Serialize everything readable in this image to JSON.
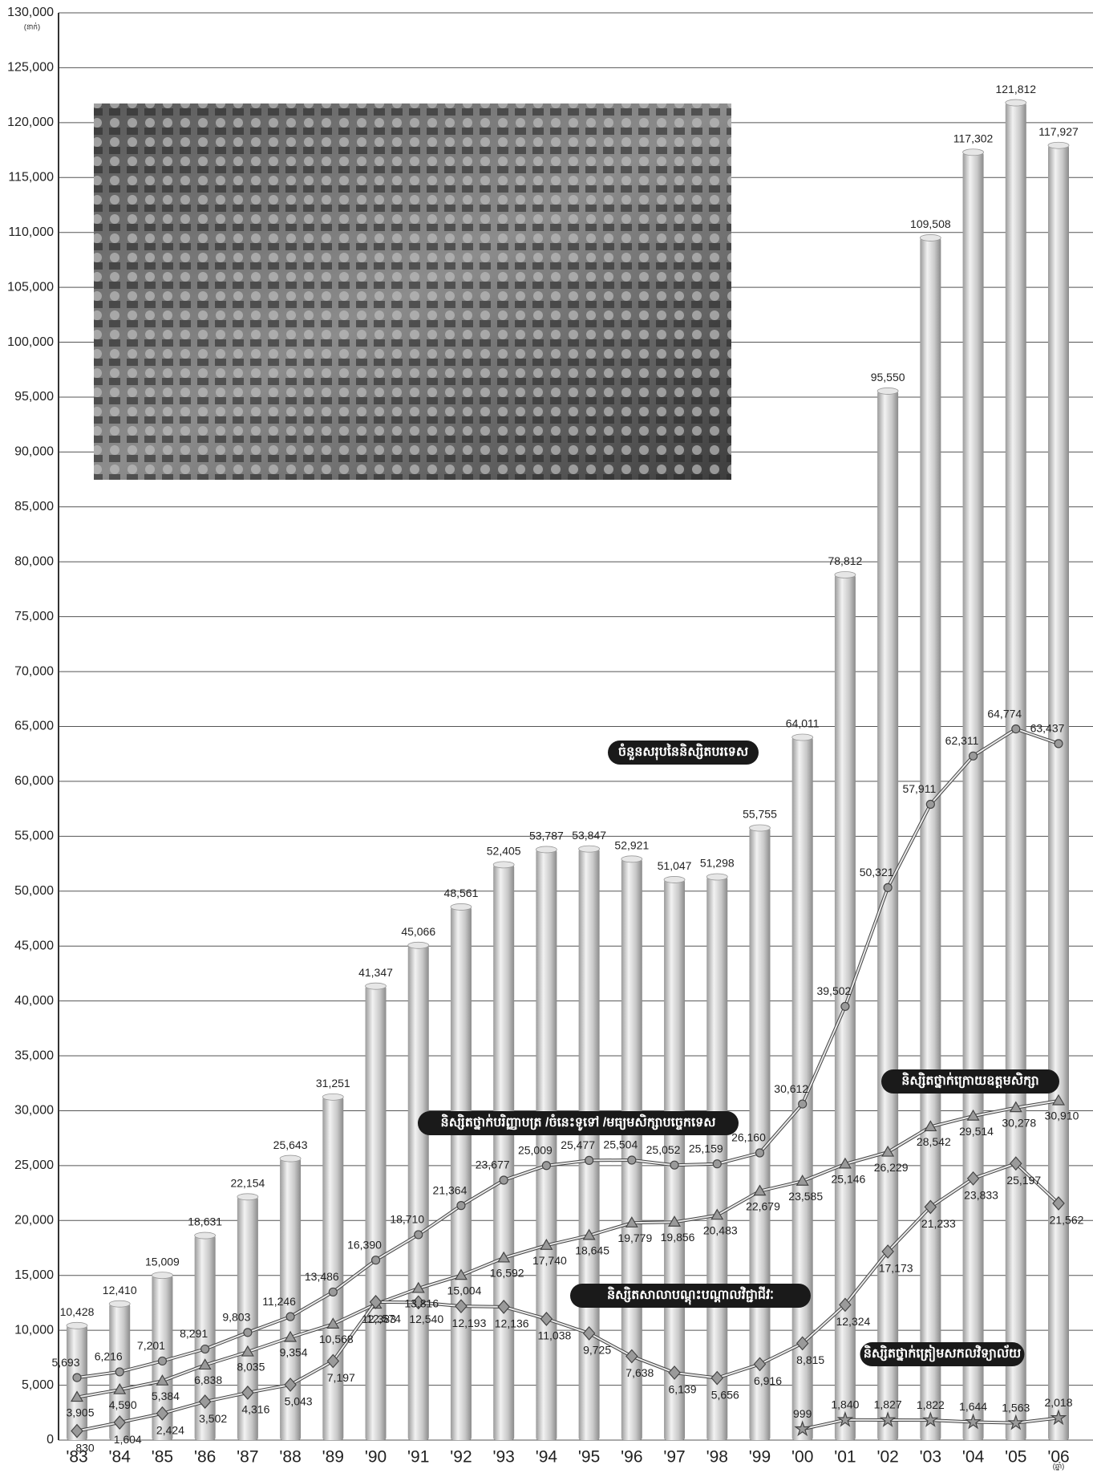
{
  "chart_data": {
    "type": "bar_line",
    "y_unit": "(នាក់)",
    "x_unit": "(ឆ្នាំ)",
    "categories": [
      "'83",
      "'84",
      "'85",
      "'86",
      "'87",
      "'88",
      "'89",
      "'90",
      "'91",
      "'92",
      "'93",
      "'94",
      "'95",
      "'96",
      "'97",
      "'98",
      "'99",
      "'00",
      "'01",
      "'02",
      "'03",
      "'04",
      "'05",
      "'06"
    ],
    "ylim": [
      0,
      130000
    ],
    "yticks": [
      0,
      {
        "value": 5000,
        "label": "5,000"
      },
      {
        "value": 10000,
        "label": "10,000"
      },
      {
        "value": 15000,
        "label": "15,000"
      },
      {
        "value": 20000,
        "label": "20,000"
      },
      {
        "value": 25000,
        "label": "25,000"
      },
      {
        "value": 30000,
        "label": "30,000"
      },
      {
        "value": 35000,
        "label": "35,000"
      },
      {
        "value": 40000,
        "label": "40,000"
      },
      {
        "value": 45000,
        "label": "45,000"
      },
      {
        "value": 50000,
        "label": "50,000"
      },
      {
        "value": 55000,
        "label": "55,000"
      },
      {
        "value": 60000,
        "label": "60,000"
      },
      {
        "value": 65000,
        "label": "65,000"
      },
      {
        "value": 70000,
        "label": "70,000"
      },
      {
        "value": 75000,
        "label": "75,000"
      },
      {
        "value": 80000,
        "label": "80,000"
      },
      {
        "value": 85000,
        "label": "85,000"
      },
      {
        "value": 90000,
        "label": "90,000"
      },
      {
        "value": 95000,
        "label": "95,000"
      },
      {
        "value": 100000,
        "label": "100,000"
      },
      {
        "value": 105000,
        "label": "105,000"
      },
      {
        "value": 110000,
        "label": "110,000"
      },
      {
        "value": 115000,
        "label": "115,000"
      },
      {
        "value": 120000,
        "label": "120,000"
      },
      {
        "value": 125000,
        "label": "125,000"
      },
      {
        "value": 130000,
        "label": "130,000"
      }
    ],
    "grid": true,
    "series": [
      {
        "name": "ចំនួនសរុបនៃនិស្សិតបរទេស",
        "kind": "bar",
        "color": "#bdbdbd",
        "values": [
          10428,
          12410,
          15009,
          18631,
          22154,
          25643,
          31251,
          41347,
          45066,
          48561,
          52405,
          53787,
          53847,
          52921,
          51047,
          51298,
          55755,
          64011,
          78812,
          95550,
          109508,
          117302,
          121812,
          117927
        ],
        "value_labels": [
          "10,428",
          "12,410",
          "15,009",
          "18,631",
          "22,154",
          "25,643",
          "31,251",
          "41,347",
          "45,066",
          "48,561",
          "52,405",
          "53,787",
          "53,847",
          "52,921",
          "51,047",
          "51,298",
          "55,755",
          "64,011",
          "78,812",
          "95,550",
          "109,508",
          "117,302",
          "121,812",
          "117,927"
        ]
      },
      {
        "name": "និស្សិតថ្នាក់បរិញ្ញាបត្រ /ចំនេះទូទៅ /មធ្យមសិក្សាបច្ចេកទេស",
        "kind": "line",
        "marker": "circle",
        "color": "#666666",
        "values": [
          5693,
          6216,
          7201,
          8291,
          9803,
          11246,
          13486,
          16390,
          18710,
          21364,
          23677,
          25009,
          25477,
          25504,
          25052,
          25159,
          26160,
          30612,
          39502,
          50321,
          57911,
          62311,
          64774,
          63437
        ],
        "value_labels": [
          "5,693",
          "6,216",
          "7,201",
          "8,291",
          "9,803",
          "11,246",
          "13,486",
          "16,390",
          "18,710",
          "21,364",
          "23,677",
          "25,009",
          "25,477",
          "25,504",
          "25,052",
          "25,159",
          "26,160",
          "30,612",
          "39,502",
          "50,321",
          "57,911",
          "62,311",
          "64,774",
          "63,437"
        ]
      },
      {
        "name": "និស្សិតថ្នាក់ក្រោយឧត្តមសិក្សា",
        "kind": "line",
        "marker": "triangle",
        "color": "#666666",
        "values": [
          3905,
          4590,
          5384,
          6838,
          8035,
          9354,
          10568,
          12383,
          13816,
          15004,
          16592,
          17740,
          18645,
          19779,
          19856,
          20483,
          22679,
          23585,
          25146,
          26229,
          28542,
          29514,
          30278,
          30910
        ],
        "value_labels": [
          "3,905",
          "4,590",
          "5,384",
          "6,838",
          "8,035",
          "9,354",
          "10,568",
          "12,383",
          "13,816",
          "15,004",
          "16,592",
          "17,740",
          "18,645",
          "19,779",
          "19,856",
          "20,483",
          "22,679",
          "23,585",
          "25,146",
          "26,229",
          "28,542",
          "29,514",
          "30,278",
          "30,910"
        ]
      },
      {
        "name": "និស្សិតសាលាបណ្ដុះបណ្ដាលវិជ្ជាជីវៈ",
        "kind": "line",
        "marker": "diamond",
        "color": "#666666",
        "values": [
          830,
          1604,
          2424,
          3502,
          4316,
          5043,
          7197,
          12574,
          12540,
          12193,
          12136,
          11038,
          9725,
          7638,
          6139,
          5656,
          6916,
          8815,
          12324,
          17173,
          21233,
          23833,
          25197,
          21562
        ],
        "value_labels": [
          "830",
          "1,604",
          "2,424",
          "3,502",
          "4,316",
          "5,043",
          "7,197",
          "12,574",
          "12,540",
          "12,193",
          "12,136",
          "11,038",
          "9,725",
          "7,638",
          "6,139",
          "5,656",
          "6,916",
          "8,815",
          "12,324",
          "17,173",
          "21,233",
          "23,833",
          "25,197",
          "21,562"
        ]
      },
      {
        "name": "និស្សិតថ្នាក់ត្រៀមសកលវិទ្យាល័យ",
        "kind": "line",
        "marker": "star",
        "color": "#666666",
        "values": [
          null,
          null,
          null,
          null,
          null,
          null,
          null,
          null,
          null,
          null,
          null,
          null,
          null,
          null,
          null,
          null,
          null,
          999,
          1840,
          1827,
          1822,
          1644,
          1563,
          2018
        ],
        "value_labels": [
          null,
          null,
          null,
          null,
          null,
          null,
          null,
          null,
          null,
          null,
          null,
          null,
          null,
          null,
          null,
          null,
          null,
          "999",
          "1,840",
          "1,827",
          "1,822",
          "1,644",
          "1,563",
          "2,018"
        ]
      }
    ]
  }
}
